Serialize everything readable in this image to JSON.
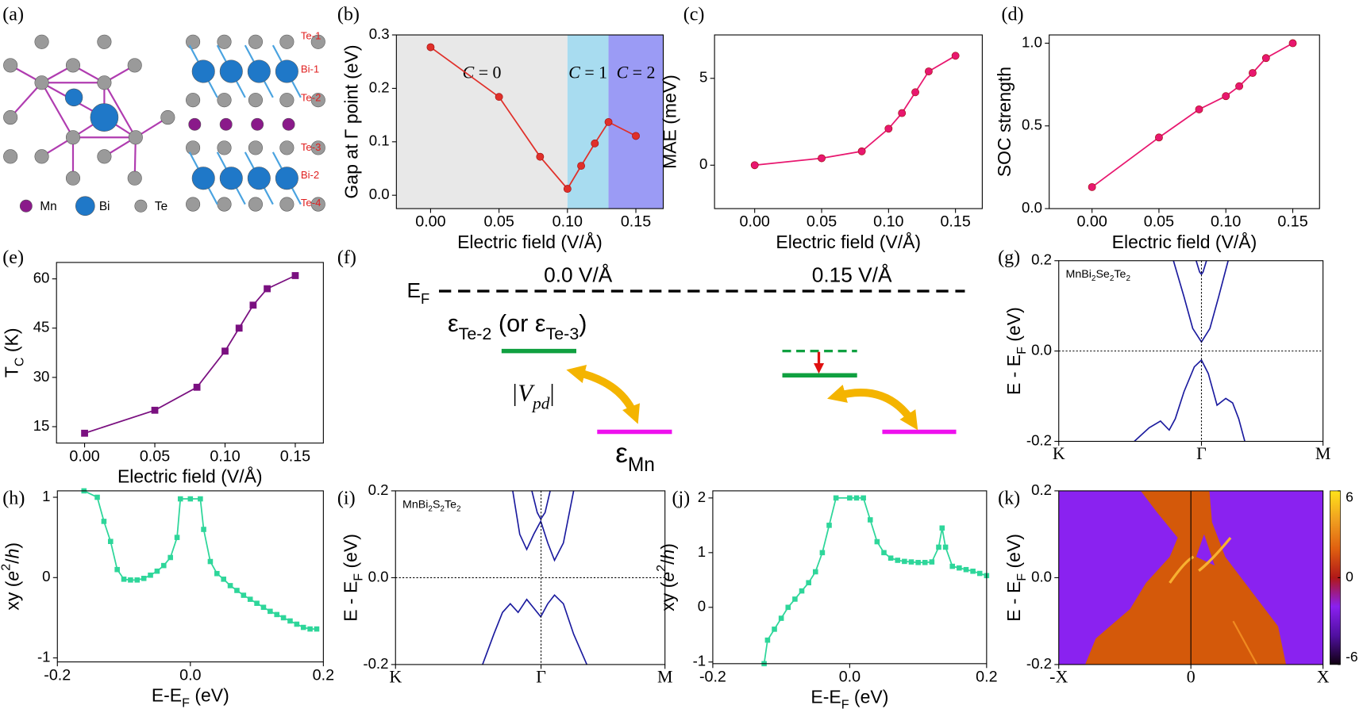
{
  "structure": {
    "panel": "(a)",
    "layer_labels": [
      "Te-1",
      "Bi-1",
      "Te-2",
      "Te-3",
      "Bi-2",
      "Te-4"
    ],
    "legend": [
      "Mn",
      "Bi",
      "Te"
    ]
  },
  "diagram": {
    "panel": "(f)",
    "fields": [
      "0.0 V/Å",
      "0.15 V/Å"
    ],
    "ef": [
      {
        "text": "E"
      },
      {
        "text": "F",
        "sub": true
      }
    ],
    "te_label": [
      {
        "text": "ε"
      },
      {
        "text": "Te-2",
        "sub": true
      },
      {
        "text": " (or ε"
      },
      {
        "text": "Te-3",
        "sub": true
      },
      {
        "text": ")"
      }
    ],
    "vpd": [
      {
        "text": "|V",
        "italic": true
      },
      {
        "text": "pd",
        "sub": true,
        "italic": true
      },
      {
        "text": "|"
      }
    ],
    "mn_label": [
      {
        "text": "ε"
      },
      {
        "text": "Mn",
        "sub": true
      }
    ]
  },
  "chart_data": [
    {
      "type": "line",
      "panel": "(b)",
      "xlabel": "Electric field (V/Å)",
      "ylabel": "Gap at Γ point (eV)",
      "x": [
        0,
        0.05,
        0.08,
        0.1,
        0.11,
        0.12,
        0.13,
        0.15
      ],
      "values": [
        0.277,
        0.184,
        0.072,
        0.012,
        0.055,
        0.097,
        0.137,
        0.111
      ],
      "color": "#e0302a",
      "marker": "circle",
      "xlim": [
        -0.025,
        0.17
      ],
      "ylim": [
        -0.025,
        0.3
      ],
      "xticks": [
        {
          "value": 0,
          "label": "0.00"
        },
        0.05,
        {
          "value": 0.1,
          "label": "0.10"
        },
        0.15
      ],
      "yticks": [
        {
          "value": 0,
          "label": "0.0"
        },
        0.1,
        0.2,
        0.3
      ],
      "regions": [
        {
          "label": [
            {
              "text": "C",
              "italic": true
            },
            {
              "text": " = 0"
            }
          ],
          "x": [
            -0.025,
            0.1
          ],
          "color": "#e8e8e8"
        },
        {
          "label": [
            {
              "text": "C",
              "italic": true
            },
            {
              "text": " = 1"
            }
          ],
          "x": [
            0.1,
            0.13
          ],
          "color": "#a8dcf0"
        },
        {
          "label": [
            {
              "text": "C",
              "italic": true
            },
            {
              "text": " = 2"
            }
          ],
          "x": [
            0.13,
            0.17
          ],
          "color": "#9b9bf5"
        }
      ]
    },
    {
      "type": "line",
      "panel": "(c)",
      "xlabel": "Electric field (V/Å)",
      "ylabel": "MAE (meV)",
      "x": [
        0,
        0.05,
        0.08,
        0.1,
        0.11,
        0.12,
        0.13,
        0.15
      ],
      "values": [
        0,
        0.4,
        0.8,
        2.1,
        3.0,
        4.2,
        5.4,
        6.3
      ],
      "color": "#e8176f",
      "marker": "circle",
      "xlim": [
        -0.03,
        0.17
      ],
      "ylim": [
        -2.5,
        7.5
      ],
      "xticks": [
        {
          "value": 0,
          "label": "0.00"
        },
        0.05,
        {
          "value": 0.1,
          "label": "0.10"
        },
        0.15
      ],
      "yticks": [
        0,
        5
      ]
    },
    {
      "type": "line",
      "panel": "(d)",
      "xlabel": "Electric field (V/Å)",
      "ylabel": "SOC strength",
      "x": [
        0,
        0.05,
        0.08,
        0.1,
        0.11,
        0.12,
        0.13,
        0.15
      ],
      "values": [
        0.13,
        0.43,
        0.6,
        0.68,
        0.74,
        0.82,
        0.91,
        1.0
      ],
      "color": "#e8176f",
      "marker": "circle",
      "xlim": [
        -0.032,
        0.17
      ],
      "ylim": [
        0,
        1.05
      ],
      "xticks": [
        {
          "value": 0,
          "label": "0.00"
        },
        0.05,
        {
          "value": 0.1,
          "label": "0.10"
        },
        0.15
      ],
      "yticks": [
        {
          "value": 0,
          "label": "0.0"
        },
        0.5,
        {
          "value": 1,
          "label": "1.0"
        }
      ]
    },
    {
      "type": "line",
      "panel": "(e)",
      "xlabel": "Electric field (V/Å)",
      "ylabel": [
        {
          "text": "T"
        },
        {
          "text": "C",
          "sub": true
        },
        {
          "text": " (K)"
        }
      ],
      "x": [
        0,
        0.05,
        0.08,
        0.1,
        0.11,
        0.12,
        0.13,
        0.15
      ],
      "values": [
        13,
        20,
        27,
        38,
        45,
        52,
        57,
        61
      ],
      "color": "#7a1080",
      "marker": "square",
      "xlim": [
        -0.02,
        0.17
      ],
      "ylim": [
        10,
        65
      ],
      "xticks": [
        {
          "value": 0,
          "label": "0.00"
        },
        0.05,
        {
          "value": 0.1,
          "label": "0.10"
        },
        0.15
      ],
      "yticks": [
        15,
        30,
        45,
        60
      ]
    },
    {
      "type": "band",
      "panel": "(g)",
      "label": [
        {
          "text": "MnBi"
        },
        {
          "text": "2",
          "sub": true
        },
        {
          "text": "Se"
        },
        {
          "text": "2",
          "sub": true
        },
        {
          "text": "Te"
        },
        {
          "text": "2",
          "sub": true
        }
      ],
      "ylabel": [
        {
          "text": "E - E"
        },
        {
          "text": "F",
          "sub": true
        },
        {
          "text": " (eV)"
        }
      ],
      "xlim": [
        0,
        1
      ],
      "ylim": [
        -0.2,
        0.2
      ],
      "xticks": [
        {
          "value": 0,
          "label": "K"
        },
        {
          "value": 0.54,
          "label": "Γ"
        },
        {
          "value": 1,
          "label": "M"
        }
      ],
      "yticks": [
        -0.2,
        {
          "value": 0,
          "label": "0.0"
        },
        0.2
      ],
      "dashed_lines": {
        "x": [
          0.54
        ],
        "y": [
          0
        ]
      },
      "series": [
        {
          "color": "#1a1a9e",
          "x": [
            0.434,
            0.474,
            0.507,
            0.54,
            0.572,
            0.605,
            0.641
          ],
          "values": [
            0.2,
            0.12,
            0.05,
            0.02,
            0.05,
            0.12,
            0.2
          ]
        },
        {
          "color": "#1a1a9e",
          "x": [
            0.52,
            0.533,
            0.54,
            0.546,
            0.559
          ],
          "values": [
            0.2,
            0.175,
            0.17,
            0.175,
            0.2
          ]
        },
        {
          "color": "#1a1a9e",
          "x": [
            0.286,
            0.342,
            0.385,
            0.418,
            0.441,
            0.474,
            0.513,
            0.54,
            0.566,
            0.599,
            0.632,
            0.658,
            0.681,
            0.704
          ],
          "values": [
            -0.2,
            -0.17,
            -0.155,
            -0.175,
            -0.15,
            -0.09,
            -0.035,
            -0.02,
            -0.05,
            -0.12,
            -0.105,
            -0.115,
            -0.15,
            -0.2
          ]
        }
      ]
    },
    {
      "type": "line",
      "panel": "(h)",
      "xlabel": [
        {
          "text": "E-E"
        },
        {
          "text": "F",
          "sub": true
        },
        {
          "text": " (eV)"
        }
      ],
      "ylabel": [
        {
          "text": "xy"
        },
        {
          "text": " ("
        },
        {
          "text": "e",
          "italic": true
        },
        {
          "text": "2",
          "sup": true
        },
        {
          "text": "/"
        },
        {
          "text": "h",
          "italic": true
        },
        {
          "text": ")"
        }
      ],
      "x": [
        -0.16,
        -0.14,
        -0.13,
        -0.12,
        -0.11,
        -0.1,
        -0.09,
        -0.08,
        -0.07,
        -0.06,
        -0.05,
        -0.04,
        -0.03,
        -0.02,
        -0.015,
        0,
        0.015,
        0.02,
        0.03,
        0.04,
        0.05,
        0.06,
        0.07,
        0.08,
        0.09,
        0.1,
        0.11,
        0.12,
        0.13,
        0.14,
        0.15,
        0.16,
        0.17,
        0.18,
        0.19
      ],
      "values": [
        1.08,
        1.0,
        0.7,
        0.45,
        0.1,
        -0.02,
        -0.03,
        -0.03,
        -0.01,
        0.03,
        0.08,
        0.15,
        0.25,
        0.5,
        0.98,
        0.98,
        0.98,
        0.6,
        0.2,
        0.05,
        -0.02,
        -0.1,
        -0.16,
        -0.22,
        -0.27,
        -0.32,
        -0.37,
        -0.42,
        -0.46,
        -0.5,
        -0.54,
        -0.58,
        -0.62,
        -0.64,
        -0.64
      ],
      "color": "#2ed69a",
      "marker": "square",
      "xlim": [
        -0.2,
        0.2
      ],
      "ylim": [
        -1.05,
        1.08
      ],
      "xticks": [
        -0.2,
        {
          "value": 0,
          "label": "0.0"
        },
        0.2
      ],
      "yticks": [
        -1,
        0,
        1
      ]
    },
    {
      "type": "band",
      "panel": "(i)",
      "label": [
        {
          "text": "MnBi"
        },
        {
          "text": "2",
          "sub": true
        },
        {
          "text": "S"
        },
        {
          "text": "2",
          "sub": true
        },
        {
          "text": "Te"
        },
        {
          "text": "2",
          "sub": true
        }
      ],
      "ylabel": [
        {
          "text": "E - E"
        },
        {
          "text": "F",
          "sub": true
        },
        {
          "text": " (eV)"
        }
      ],
      "xlim": [
        0,
        1
      ],
      "ylim": [
        -0.2,
        0.2
      ],
      "xticks": [
        {
          "value": 0,
          "label": "K"
        },
        {
          "value": 0.54,
          "label": "Γ"
        },
        {
          "value": 1,
          "label": "M"
        }
      ],
      "yticks": [
        -0.2,
        {
          "value": 0,
          "label": "0.0"
        },
        0.2
      ],
      "dashed_lines": {
        "x": [
          0.54
        ],
        "y": [
          0
        ]
      },
      "series": [
        {
          "color": "#1a1a9e",
          "x": [
            0.435,
            0.461,
            0.487,
            0.513,
            0.539,
            0.565,
            0.59,
            0.623,
            0.661
          ],
          "values": [
            0.2,
            0.1,
            0.065,
            0.1,
            0.13,
            0.08,
            0.04,
            0.08,
            0.2
          ]
        },
        {
          "color": "#1a1a9e",
          "x": [
            0.506,
            0.526,
            0.539,
            0.555,
            0.574
          ],
          "values": [
            0.2,
            0.15,
            0.135,
            0.15,
            0.2
          ]
        },
        {
          "color": "#1a1a9e",
          "x": [
            0.323,
            0.365,
            0.397,
            0.426,
            0.455,
            0.487,
            0.513,
            0.539,
            0.565,
            0.59,
            0.623,
            0.661,
            0.71
          ],
          "values": [
            -0.2,
            -0.13,
            -0.08,
            -0.06,
            -0.08,
            -0.05,
            -0.07,
            -0.09,
            -0.06,
            -0.04,
            -0.06,
            -0.13,
            -0.2
          ]
        }
      ]
    },
    {
      "type": "line",
      "panel": "(j)",
      "xlabel": [
        {
          "text": "E-E"
        },
        {
          "text": "F",
          "sub": true
        },
        {
          "text": " (eV)"
        }
      ],
      "ylabel": [
        {
          "text": "xy"
        },
        {
          "text": " ("
        },
        {
          "text": "e",
          "italic": true
        },
        {
          "text": "2",
          "sup": true
        },
        {
          "text": "/"
        },
        {
          "text": "h",
          "italic": true
        },
        {
          "text": ")"
        }
      ],
      "x": [
        -0.125,
        -0.12,
        -0.11,
        -0.1,
        -0.09,
        -0.08,
        -0.07,
        -0.06,
        -0.05,
        -0.04,
        -0.03,
        -0.02,
        0,
        0.01,
        0.02,
        0.03,
        0.04,
        0.05,
        0.06,
        0.07,
        0.08,
        0.09,
        0.1,
        0.11,
        0.12,
        0.13,
        0.135,
        0.14,
        0.15,
        0.16,
        0.17,
        0.18,
        0.19,
        0.2
      ],
      "values": [
        -1.03,
        -0.6,
        -0.4,
        -0.2,
        0,
        0.15,
        0.3,
        0.45,
        0.65,
        1.0,
        1.5,
        2.0,
        2.0,
        2.0,
        2.0,
        1.6,
        1.2,
        1.0,
        0.9,
        0.86,
        0.84,
        0.83,
        0.82,
        0.82,
        0.83,
        1.1,
        1.45,
        1.1,
        0.75,
        0.72,
        0.69,
        0.66,
        0.62,
        0.58
      ],
      "color": "#2ed69a",
      "marker": "square",
      "xlim": [
        -0.2,
        0.2
      ],
      "ylim": [
        -1.03,
        2.13
      ],
      "xticks": [
        -0.2,
        {
          "value": 0,
          "label": "0.0"
        },
        0.2
      ],
      "yticks": [
        -1,
        0,
        1,
        2
      ]
    },
    {
      "type": "heatmap",
      "panel": "(k)",
      "ylabel": [
        {
          "text": "E - E"
        },
        {
          "text": "F",
          "sub": true
        },
        {
          "text": " (eV)"
        }
      ],
      "xlim": [
        -1,
        1
      ],
      "ylim": [
        -0.2,
        0.2
      ],
      "xticks": [
        {
          "value": -1,
          "label": "-X"
        },
        0,
        {
          "value": 1,
          "label": "X"
        }
      ],
      "yticks": [
        -0.2,
        {
          "value": 0,
          "label": "0.0"
        },
        0.2
      ],
      "colorbar": {
        "lim": [
          -6,
          6
        ],
        "ticks": [
          6,
          0,
          -6
        ],
        "colors": [
          "#ffe21a",
          "#f0a020",
          "#e06010",
          "#b01818",
          "#8a20f0",
          "#5010a0",
          "#100010"
        ]
      }
    }
  ]
}
